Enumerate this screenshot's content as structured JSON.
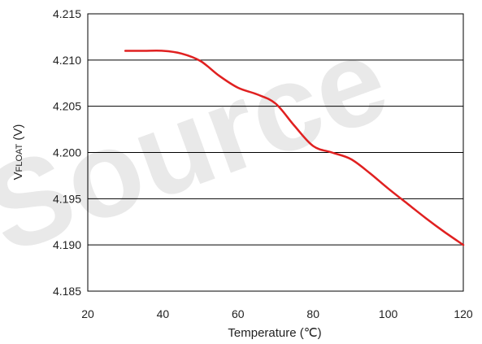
{
  "watermark": {
    "text": "Source"
  },
  "chart_data": {
    "type": "line",
    "title": "",
    "xlabel": "Temperature (℃)",
    "ylabel_main": "V",
    "ylabel_sub": "FLOAT",
    "ylabel_unit": " (V)",
    "xlim": [
      20,
      120
    ],
    "ylim": [
      4.185,
      4.215
    ],
    "xticks": [
      "20",
      "40",
      "60",
      "80",
      "100",
      "120"
    ],
    "yticks": [
      "4.185",
      "4.190",
      "4.195",
      "4.200",
      "4.205",
      "4.210",
      "4.215"
    ],
    "grid": "horizontal",
    "legend": "none",
    "line_color": "#e02020",
    "series": [
      {
        "x": [
          30,
          35,
          40,
          45,
          50,
          55,
          60,
          65,
          70,
          75,
          80,
          85,
          90,
          95,
          100,
          105,
          110,
          115,
          120
        ],
        "y": [
          4.211,
          4.211,
          4.211,
          4.2107,
          4.2099,
          4.2083,
          4.207,
          4.2063,
          4.2053,
          4.2029,
          4.2007,
          4.2,
          4.1993,
          4.1978,
          4.1961,
          4.1945,
          4.1929,
          4.1914,
          4.19
        ]
      }
    ]
  }
}
